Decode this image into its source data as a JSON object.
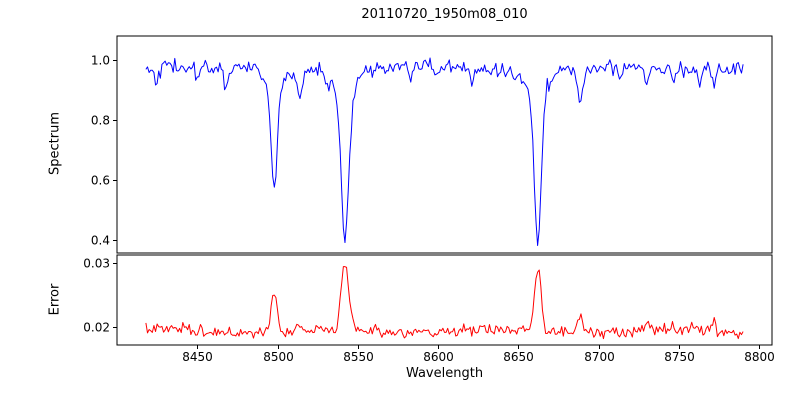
{
  "title": "20110720_1950m08_010",
  "axes": {
    "xlabel": "Wavelength",
    "top_ylabel": "Spectrum",
    "bottom_ylabel": "Error",
    "xlim": [
      8400,
      8808
    ],
    "x_ticks": [
      8450,
      8500,
      8550,
      8600,
      8650,
      8700,
      8750,
      8800
    ],
    "x_tick_labels": [
      "8450",
      "8500",
      "8550",
      "8600",
      "8650",
      "8700",
      "8750",
      "8800"
    ],
    "top_y_ticks": [
      0.4,
      0.6,
      0.8,
      1.0
    ],
    "top_y_tick_labels": [
      "0.4",
      "0.6",
      "0.8",
      "1.0"
    ],
    "bottom_y_ticks": [
      0.02,
      0.03
    ],
    "bottom_y_tick_labels": [
      "0.02",
      "0.03"
    ]
  },
  "colors": {
    "spectrum": "#0000ff",
    "error": "#ff0000",
    "axis": "#000000"
  },
  "chart_data": [
    {
      "type": "line",
      "name": "spectrum",
      "color": "#0000ff",
      "ylabel": "Spectrum",
      "ylim": [
        0.355,
        1.08
      ],
      "x_range": [
        8418,
        8790
      ],
      "x_step": 1.0,
      "continuum": 0.972,
      "noise_sigma": 0.012,
      "absorption_lines": [
        {
          "center": 8498.0,
          "depth": 0.34,
          "sigma": 1.9
        },
        {
          "center": 8542.1,
          "depth": 0.5,
          "sigma": 2.4
        },
        {
          "center": 8662.1,
          "depth": 0.49,
          "sigma": 2.2
        },
        {
          "center": 8424.0,
          "depth": 0.06,
          "sigma": 1.0
        },
        {
          "center": 8450.0,
          "depth": 0.04,
          "sigma": 1.0
        },
        {
          "center": 8468.0,
          "depth": 0.07,
          "sigma": 1.2
        },
        {
          "center": 8514.0,
          "depth": 0.1,
          "sigma": 1.4
        },
        {
          "center": 8531.0,
          "depth": 0.05,
          "sigma": 1.0
        },
        {
          "center": 8583.0,
          "depth": 0.05,
          "sigma": 1.0
        },
        {
          "center": 8598.0,
          "depth": 0.04,
          "sigma": 1.0
        },
        {
          "center": 8621.0,
          "depth": 0.05,
          "sigma": 1.2
        },
        {
          "center": 8648.0,
          "depth": 0.04,
          "sigma": 1.0
        },
        {
          "center": 8688.5,
          "depth": 0.12,
          "sigma": 1.5
        },
        {
          "center": 8713.0,
          "depth": 0.05,
          "sigma": 1.0
        },
        {
          "center": 8730.0,
          "depth": 0.06,
          "sigma": 1.2
        },
        {
          "center": 8747.0,
          "depth": 0.04,
          "sigma": 1.0
        },
        {
          "center": 8763.0,
          "depth": 0.05,
          "sigma": 1.0
        },
        {
          "center": 8772.0,
          "depth": 0.06,
          "sigma": 1.2
        }
      ],
      "seed": 42
    },
    {
      "type": "line",
      "name": "error",
      "color": "#ff0000",
      "ylabel": "Error",
      "ylim": [
        0.0172,
        0.0312
      ],
      "x_range": [
        8418,
        8790
      ],
      "x_step": 1.0,
      "baseline": 0.0192,
      "noise_sigma": 0.00042,
      "peaks": [
        {
          "center": 8498.0,
          "height": 0.006,
          "sigma": 2.0
        },
        {
          "center": 8542.1,
          "height": 0.0108,
          "sigma": 2.4
        },
        {
          "center": 8662.1,
          "height": 0.01,
          "sigma": 2.0
        },
        {
          "center": 8514.0,
          "height": 0.0012,
          "sigma": 1.4
        },
        {
          "center": 8688.5,
          "height": 0.0028,
          "sigma": 1.5
        },
        {
          "center": 8730.0,
          "height": 0.0012,
          "sigma": 1.2
        },
        {
          "center": 8772.0,
          "height": 0.0022,
          "sigma": 1.2
        }
      ],
      "seed": 7
    }
  ]
}
